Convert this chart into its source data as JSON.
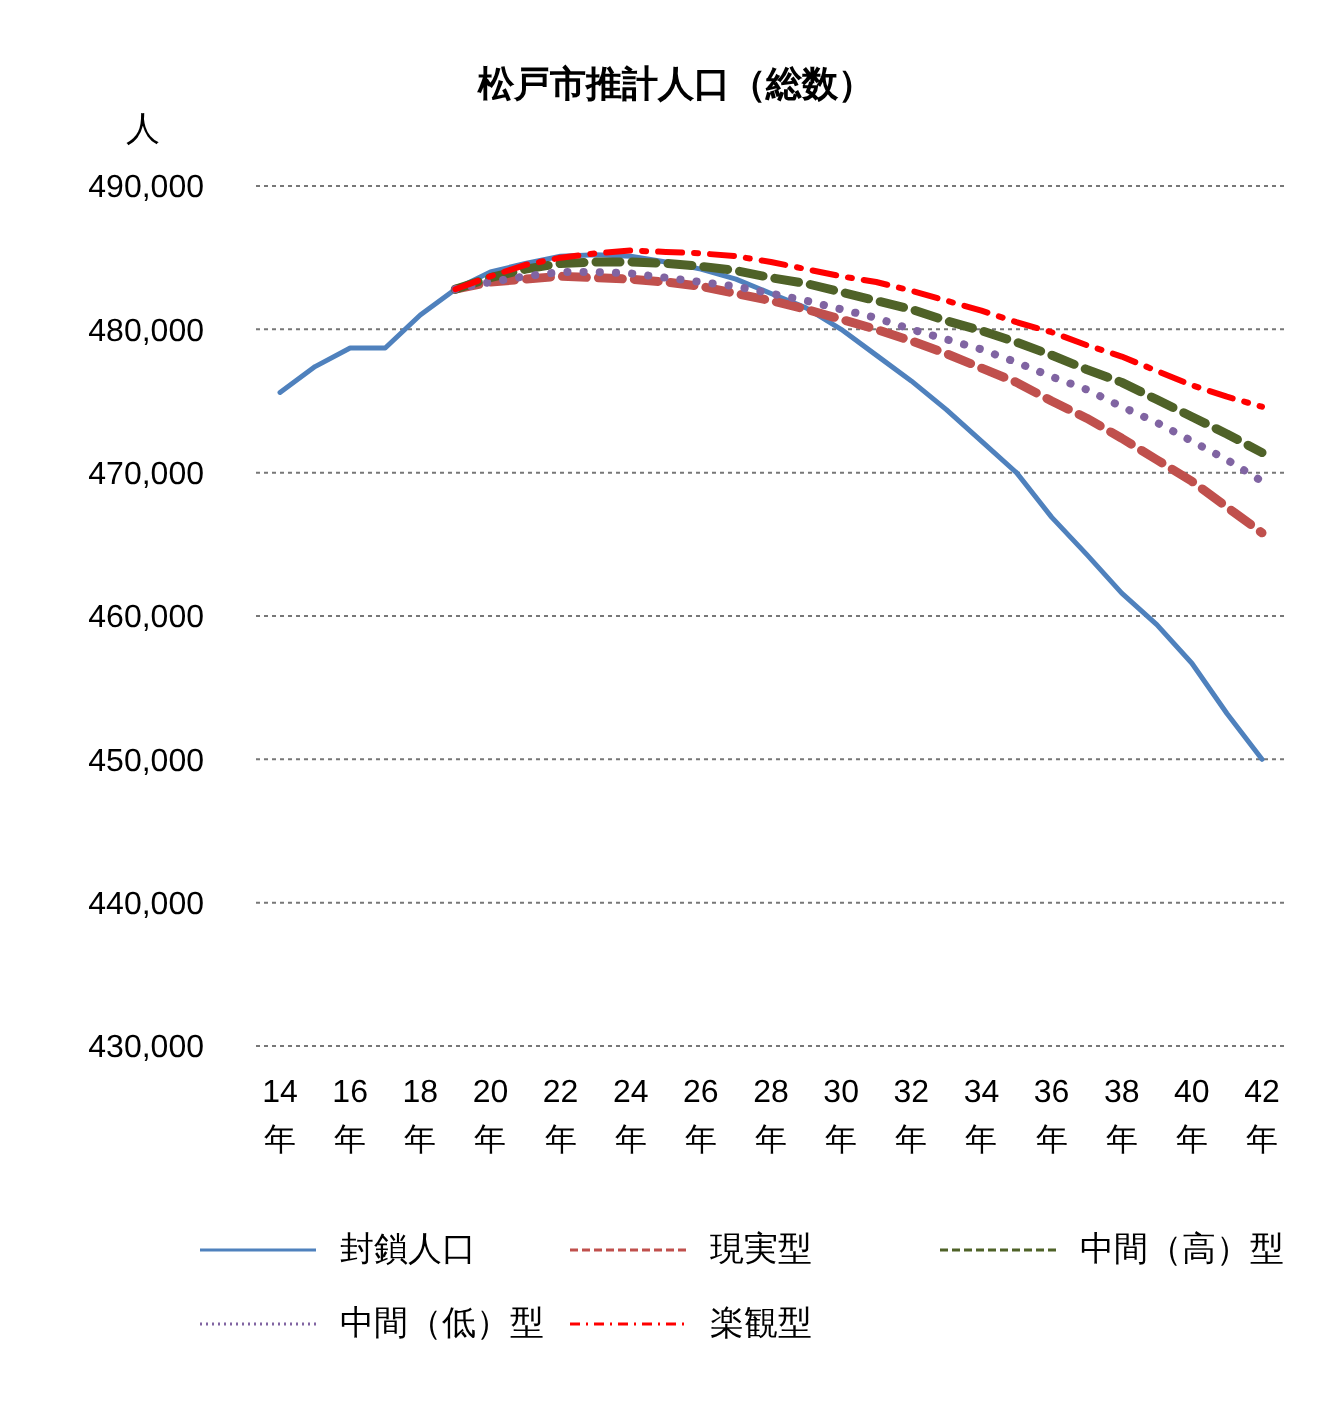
{
  "chart_data": {
    "type": "line",
    "title": "松戸市推計人口（総数）",
    "ylabel": "人",
    "categories": [
      "14年",
      null,
      "16年",
      null,
      "18年",
      null,
      "20年",
      null,
      "22年",
      null,
      "24年",
      null,
      "26年",
      null,
      "28年",
      null,
      "30年",
      null,
      "32年",
      null,
      "34年",
      null,
      "36年",
      null,
      "38年",
      null,
      "40年",
      null,
      "42年"
    ],
    "series": [
      {
        "name": "封鎖人口",
        "color": "#4f81bd",
        "line_style": "solid",
        "values": [
          475600,
          477400,
          478700,
          478700,
          481000,
          482800,
          484000,
          484600,
          485100,
          485200,
          485100,
          484700,
          484200,
          483500,
          482500,
          481500,
          480000,
          478200,
          476400,
          474400,
          472200,
          470000,
          466900,
          464300,
          461600,
          459400,
          456700,
          453200,
          450000
        ]
      },
      {
        "name": "現実型",
        "color": "#c0504d",
        "line_style": "dashed",
        "values": [
          null,
          null,
          null,
          null,
          null,
          482800,
          483300,
          483500,
          483700,
          483600,
          483500,
          483300,
          483000,
          482500,
          482000,
          481400,
          480700,
          480000,
          479200,
          478300,
          477300,
          476300,
          475000,
          473800,
          472400,
          470900,
          469400,
          467600,
          465800
        ]
      },
      {
        "name": "中間（高）型",
        "color": "#4f6228",
        "line_style": "dashed",
        "values": [
          null,
          null,
          null,
          null,
          null,
          482800,
          483600,
          484200,
          484600,
          484700,
          484700,
          484600,
          484400,
          484100,
          483600,
          483200,
          482600,
          482000,
          481400,
          480600,
          479900,
          479100,
          478200,
          477200,
          476300,
          475100,
          473900,
          472700,
          471400
        ]
      },
      {
        "name": "中間（低）型",
        "color": "#8064a2",
        "line_style": "dotted",
        "values": [
          null,
          null,
          null,
          null,
          null,
          482800,
          483300,
          483700,
          484000,
          484000,
          483900,
          483600,
          483300,
          483000,
          482500,
          482000,
          481400,
          480800,
          480000,
          479300,
          478600,
          477700,
          476700,
          475800,
          474600,
          473500,
          472200,
          470900,
          469400
        ]
      },
      {
        "name": "楽観型",
        "color": "#ff0000",
        "line_style": "dashdot",
        "values": [
          null,
          null,
          null,
          null,
          null,
          482800,
          483700,
          484500,
          485000,
          485300,
          485500,
          485400,
          485300,
          485100,
          484700,
          484200,
          483700,
          483300,
          482700,
          482000,
          481300,
          480500,
          479800,
          478900,
          478100,
          477100,
          476100,
          475300,
          474600
        ]
      }
    ],
    "ylim": [
      430000,
      490000
    ],
    "yticks": [
      {
        "value": 430000,
        "label": "430,000"
      },
      {
        "value": 440000,
        "label": "440,000"
      },
      {
        "value": 450000,
        "label": "450,000"
      },
      {
        "value": 460000,
        "label": "460,000"
      },
      {
        "value": 470000,
        "label": "470,000"
      },
      {
        "value": 480000,
        "label": "480,000"
      },
      {
        "value": 490000,
        "label": "490,000"
      }
    ],
    "grid": "y",
    "legend": "bottom",
    "marker": "none"
  }
}
